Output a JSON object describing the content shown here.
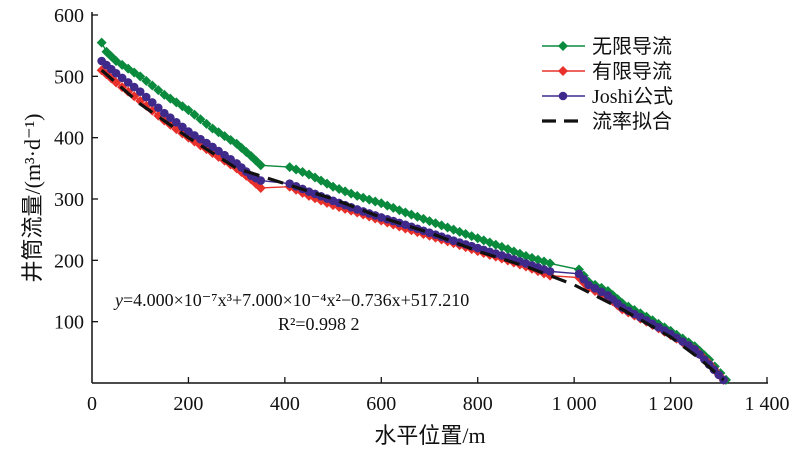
{
  "chart_data": {
    "type": "line",
    "title": "",
    "xlabel": "水平位置/m",
    "ylabel": "井筒流量/(m³·d⁻¹)",
    "xlim": [
      0,
      1400
    ],
    "ylim": [
      0,
      600
    ],
    "xticks": [
      "0",
      "200",
      "400",
      "600",
      "800",
      "1 000",
      "1 200",
      "1 400"
    ],
    "xtick_values": [
      0,
      200,
      400,
      600,
      800,
      1000,
      1200,
      1400
    ],
    "yticks": [
      "100",
      "200",
      "300",
      "400",
      "500",
      "600"
    ],
    "ytick_values": [
      100,
      200,
      300,
      400,
      500,
      600
    ],
    "grid": false,
    "legend_position": "top-right",
    "annotation": {
      "equation_prefix": "y",
      "equation": "=4.000×10⁻⁷x³+7.000×10⁻⁴x²−0.736x+517.210",
      "r2": "R²=0.998 2"
    },
    "series": [
      {
        "name": "无限导流",
        "color": "#0a8a3c",
        "marker": "diamond",
        "segments": [
          {
            "x": [
              20,
              30,
              50,
              100,
              150,
              200,
              250,
              300,
              330,
              350
            ],
            "y": [
              555,
              540,
              525,
              500,
              470,
              445,
              415,
              390,
              370,
              355
            ]
          },
          {
            "x": [
              410,
              450,
              500,
              550,
              600,
              650,
              700,
              750,
              800,
              850,
              900,
              950
            ],
            "y": [
              352,
              340,
              320,
              305,
              293,
              278,
              264,
              250,
              236,
              222,
              207,
              195
            ]
          },
          {
            "x": [
              1010,
              1030,
              1070,
              1100,
              1150,
              1200,
              1250,
              1280,
              1315
            ],
            "y": [
              185,
              165,
              150,
              130,
              108,
              85,
              60,
              38,
              5
            ]
          }
        ]
      },
      {
        "name": "有限导流",
        "color": "#e8312a",
        "marker": "diamond",
        "segments": [
          {
            "x": [
              20,
              50,
              100,
              150,
              200,
              250,
              300,
              330,
              350
            ],
            "y": [
              510,
              490,
              460,
              428,
              400,
              375,
              350,
              332,
              318
            ]
          },
          {
            "x": [
              410,
              450,
              500,
              550,
              600,
              650,
              700,
              750,
              800,
              850,
              900,
              950
            ],
            "y": [
              320,
              305,
              290,
              278,
              265,
              252,
              240,
              228,
              215,
              203,
              190,
              175
            ]
          },
          {
            "x": [
              1010,
              1030,
              1070,
              1100,
              1150,
              1200,
              1250,
              1280,
              1310
            ],
            "y": [
              172,
              155,
              140,
              120,
              100,
              78,
              55,
              32,
              5
            ]
          }
        ]
      },
      {
        "name": "Joshi公式",
        "color": "#3f2a8c",
        "marker": "circle",
        "segments": [
          {
            "x": [
              20,
              50,
              100,
              150,
              200,
              250,
              300,
              330,
              350
            ],
            "y": [
              525,
              505,
              475,
              440,
              410,
              385,
              358,
              338,
              330
            ]
          },
          {
            "x": [
              410,
              450,
              500,
              550,
              600,
              650,
              700,
              750,
              800,
              850,
              900,
              950
            ],
            "y": [
              325,
              312,
              297,
              283,
              270,
              258,
              245,
              232,
              220,
              208,
              195,
              182
            ]
          },
          {
            "x": [
              1010,
              1030,
              1070,
              1100,
              1150,
              1200,
              1250,
              1280,
              1310
            ],
            "y": [
              178,
              160,
              143,
              123,
              102,
              80,
              55,
              30,
              5
            ]
          }
        ]
      },
      {
        "name": "流率拟合",
        "color": "#111111",
        "marker": "dashed-line",
        "segments": [
          {
            "x": [
              20,
              100,
              200,
              300,
              400,
              500,
              600,
              700,
              800,
              900,
              1000,
              1100,
              1200,
              1260,
              1310
            ],
            "y": [
              510,
              455,
              400,
              350,
              325,
              300,
              270,
              245,
              215,
              190,
              160,
              120,
              75,
              40,
              5
            ]
          }
        ]
      }
    ]
  }
}
